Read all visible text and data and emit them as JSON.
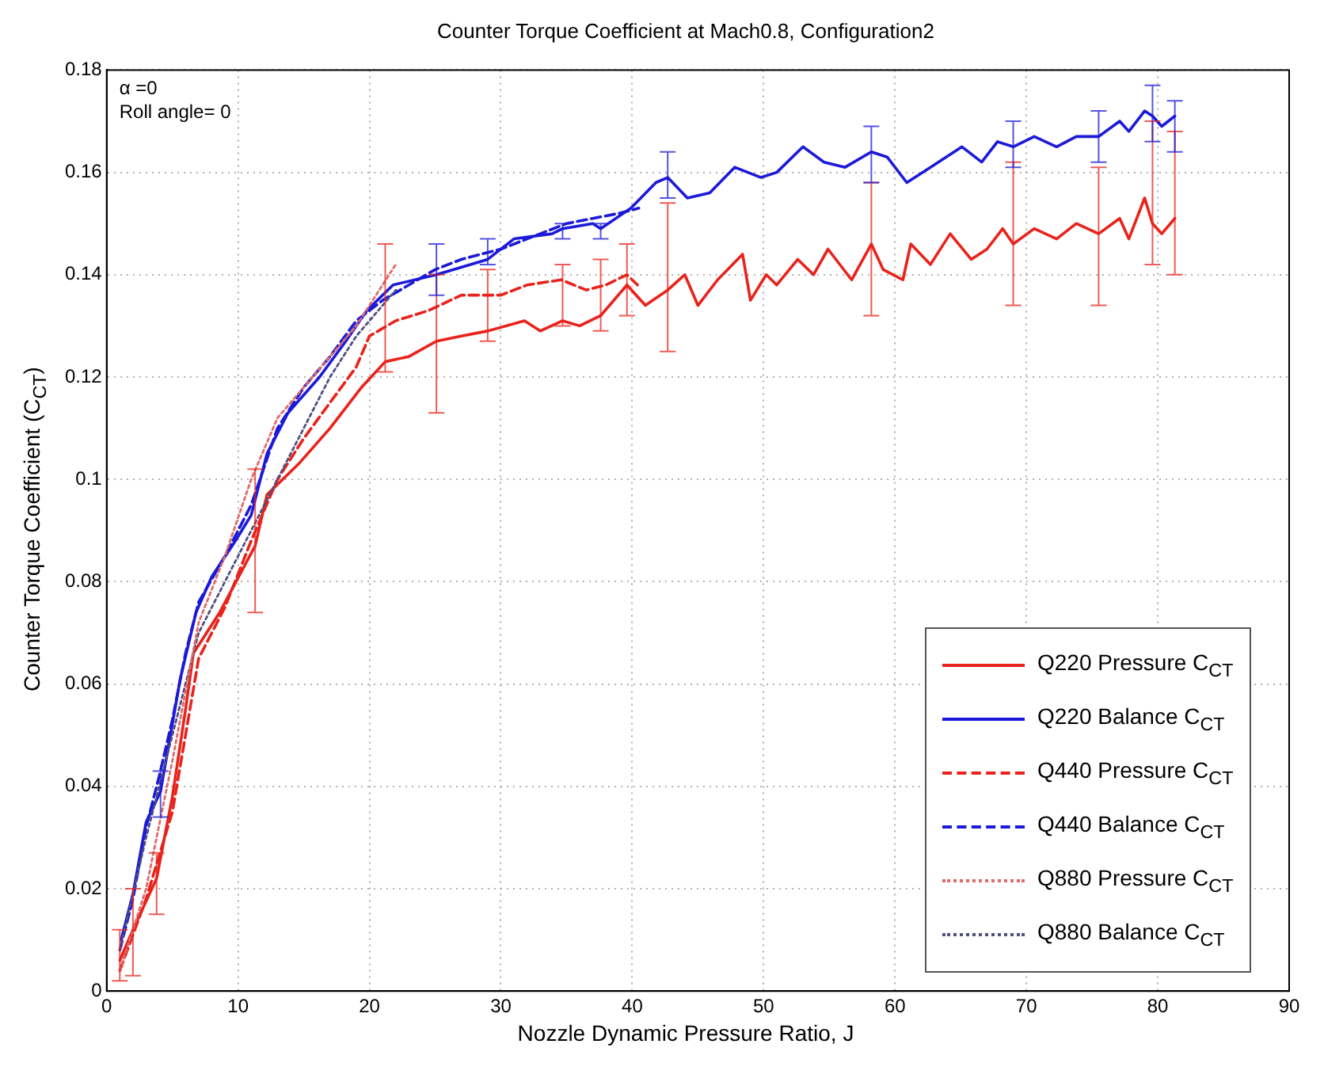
{
  "chart_data": {
    "type": "line",
    "title": "Counter Torque Coefficient at Mach0.8, Configuration2",
    "xlabel": "Nozzle Dynamic Pressure Ratio, J",
    "ylabel": "Counter Torque Coefficient (C$_{CT}$)",
    "annotations": [
      "α =0",
      "Roll angle= 0"
    ],
    "xlim": [
      0,
      90
    ],
    "xticks": [
      0,
      10,
      20,
      30,
      40,
      50,
      60,
      70,
      80,
      90
    ],
    "ylim": [
      0,
      0.18
    ],
    "yticks": [
      0,
      0.02,
      0.04,
      0.06,
      0.08,
      0.1,
      0.12,
      0.14,
      0.16,
      0.18
    ],
    "grid": true,
    "legend": "bottom right",
    "marker": "none",
    "series": [
      {
        "name": "Q220 Pressure C$_{CT}$",
        "color": "#e8231c",
        "line_style": "solid",
        "x": [
          1,
          2,
          3.8,
          5,
          6,
          6.6,
          8.6,
          11.3,
          12.2,
          14.6,
          17,
          19.4,
          21.2,
          23,
          25.1,
          27,
          29,
          31.8,
          33,
          34.7,
          36,
          37.6,
          39.6,
          41,
          42.7,
          44,
          45,
          46.5,
          48.4,
          49,
          50.2,
          51,
          52.6,
          53.8,
          54.9,
          56.7,
          58.2,
          59.1,
          60.6,
          61.2,
          62.7,
          64.2,
          65.8,
          67,
          68.2,
          69,
          70.6,
          72.3,
          73.8,
          75.5,
          77.1,
          77.8,
          79,
          79.6,
          80.3,
          81.3
        ],
        "values": [
          0.006,
          0.012,
          0.022,
          0.038,
          0.055,
          0.066,
          0.074,
          0.087,
          0.097,
          0.103,
          0.11,
          0.118,
          0.123,
          0.124,
          0.127,
          0.128,
          0.129,
          0.131,
          0.129,
          0.131,
          0.13,
          0.132,
          0.138,
          0.134,
          0.137,
          0.14,
          0.134,
          0.139,
          0.144,
          0.135,
          0.14,
          0.138,
          0.143,
          0.14,
          0.145,
          0.139,
          0.146,
          0.141,
          0.139,
          0.146,
          0.142,
          0.148,
          0.143,
          0.145,
          0.149,
          0.146,
          0.149,
          0.147,
          0.15,
          0.148,
          0.151,
          0.147,
          0.155,
          0.15,
          0.148,
          0.151
        ],
        "errors": [
          [
            0.002,
            0.012
          ],
          [
            0.003,
            0.02
          ],
          [
            0.015,
            0.027
          ],
          null,
          null,
          null,
          null,
          [
            0.074,
            0.102
          ],
          null,
          null,
          null,
          null,
          [
            0.121,
            0.146
          ],
          null,
          [
            0.113,
            0.14
          ],
          null,
          [
            0.127,
            0.141
          ],
          null,
          null,
          [
            0.13,
            0.142
          ],
          null,
          [
            0.129,
            0.143
          ],
          [
            0.132,
            0.146
          ],
          null,
          [
            0.125,
            0.154
          ],
          null,
          null,
          null,
          null,
          null,
          null,
          null,
          null,
          null,
          null,
          null,
          [
            0.132,
            0.158
          ],
          null,
          null,
          null,
          null,
          null,
          null,
          null,
          null,
          [
            0.134,
            0.162
          ],
          null,
          null,
          null,
          [
            0.134,
            0.161
          ],
          null,
          null,
          null,
          [
            0.142,
            0.17
          ],
          null,
          [
            0.14,
            0.168
          ]
        ]
      },
      {
        "name": "Q220 Balance C$_{CT}$",
        "color": "#1c1ad8",
        "line_style": "solid",
        "x": [
          1.1,
          2,
          3,
          4.1,
          5.6,
          6.8,
          8,
          9.8,
          11,
          12.2,
          13.8,
          16.2,
          18.2,
          19.8,
          21.8,
          25.1,
          29,
          31,
          33.9,
          34.7,
          37,
          37.6,
          39.9,
          41.8,
          42.7,
          44.2,
          45.9,
          47.8,
          49.8,
          51,
          53,
          54.6,
          56.2,
          58.2,
          59.4,
          60.9,
          62.7,
          65.1,
          66.6,
          67.8,
          69,
          70.6,
          72.3,
          73.8,
          75.5,
          77.1,
          77.8,
          79,
          79.6,
          80.3,
          81.3
        ],
        "values": [
          0.01,
          0.019,
          0.033,
          0.039,
          0.061,
          0.074,
          0.081,
          0.088,
          0.093,
          0.105,
          0.113,
          0.12,
          0.127,
          0.133,
          0.138,
          0.14,
          0.143,
          0.147,
          0.148,
          0.149,
          0.15,
          0.149,
          0.153,
          0.158,
          0.159,
          0.155,
          0.156,
          0.161,
          0.159,
          0.16,
          0.165,
          0.162,
          0.161,
          0.164,
          0.163,
          0.158,
          0.161,
          0.165,
          0.162,
          0.166,
          0.165,
          0.167,
          0.165,
          0.167,
          0.167,
          0.17,
          0.168,
          0.172,
          0.171,
          0.169,
          0.171
        ],
        "errors": [
          null,
          null,
          null,
          [
            0.034,
            0.043
          ],
          null,
          null,
          null,
          null,
          null,
          null,
          null,
          null,
          null,
          null,
          null,
          [
            0.136,
            0.146
          ],
          [
            0.142,
            0.147
          ],
          null,
          null,
          [
            0.147,
            0.15
          ],
          null,
          [
            0.147,
            0.15
          ],
          null,
          null,
          [
            0.155,
            0.164
          ],
          null,
          null,
          null,
          null,
          null,
          null,
          null,
          null,
          [
            0.158,
            0.169
          ],
          null,
          null,
          null,
          null,
          null,
          null,
          [
            0.161,
            0.17
          ],
          null,
          null,
          null,
          [
            0.162,
            0.172
          ],
          null,
          null,
          null,
          [
            0.166,
            0.177
          ],
          null,
          [
            0.164,
            0.174
          ]
        ]
      },
      {
        "name": "Q440 Pressure C$_{CT}$",
        "color": "#e8231c",
        "line_style": "dashed",
        "x": [
          1,
          3,
          5,
          7,
          9,
          11,
          13,
          15,
          17,
          19,
          20,
          22,
          24.5,
          27,
          30,
          32,
          34.6,
          36.5,
          38,
          39.6,
          40.4
        ],
        "values": [
          0.004,
          0.018,
          0.035,
          0.065,
          0.075,
          0.088,
          0.1,
          0.108,
          0.115,
          0.122,
          0.128,
          0.131,
          0.133,
          0.136,
          0.136,
          0.138,
          0.139,
          0.137,
          0.138,
          0.14,
          0.138
        ]
      },
      {
        "name": "Q440 Balance C$_{CT}$",
        "color": "#1c1ad8",
        "line_style": "dashed",
        "x": [
          1,
          2,
          3,
          4,
          5,
          6,
          7,
          9,
          11,
          13,
          15,
          17,
          19,
          21,
          23,
          25,
          27,
          30,
          33,
          35,
          37,
          39,
          40.5
        ],
        "values": [
          0.008,
          0.018,
          0.032,
          0.042,
          0.053,
          0.066,
          0.076,
          0.085,
          0.095,
          0.11,
          0.118,
          0.124,
          0.131,
          0.135,
          0.138,
          0.141,
          0.143,
          0.145,
          0.148,
          0.15,
          0.151,
          0.152,
          0.153
        ]
      },
      {
        "name": "Q880 Pressure C$_{CT}$",
        "color": "#e06a6a",
        "line_style": "dotted",
        "x": [
          1,
          3,
          5,
          7,
          9,
          11,
          13,
          15,
          17,
          19,
          21,
          22
        ],
        "values": [
          0.004,
          0.02,
          0.045,
          0.072,
          0.085,
          0.1,
          0.112,
          0.118,
          0.124,
          0.13,
          0.138,
          0.142
        ]
      },
      {
        "name": "Q880 Balance C$_{CT}$",
        "color": "#505080",
        "line_style": "dotted",
        "x": [
          1,
          3,
          5,
          7,
          9,
          11,
          13,
          15,
          17,
          19,
          21,
          22
        ],
        "values": [
          0.008,
          0.03,
          0.05,
          0.07,
          0.08,
          0.09,
          0.1,
          0.11,
          0.12,
          0.128,
          0.134,
          0.137
        ]
      }
    ]
  }
}
